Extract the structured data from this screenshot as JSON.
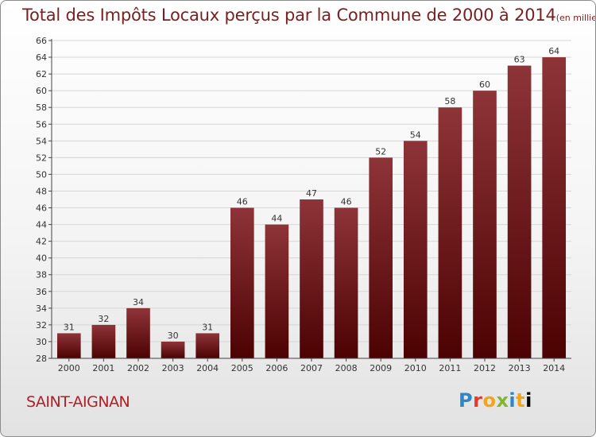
{
  "chart_data": {
    "type": "bar",
    "title": "Total des Impôts Locaux perçus par la Commune de 2000 à 2014",
    "unit": "(en milliers d'€)",
    "categories": [
      "2000",
      "2001",
      "2002",
      "2003",
      "2004",
      "2005",
      "2006",
      "2007",
      "2008",
      "2009",
      "2010",
      "2011",
      "2012",
      "2013",
      "2014"
    ],
    "values": [
      31,
      32,
      34,
      30,
      31,
      46,
      44,
      47,
      46,
      52,
      54,
      58,
      60,
      63,
      64
    ],
    "ylim": [
      28,
      66
    ],
    "yticks": [
      28,
      30,
      32,
      34,
      36,
      38,
      40,
      42,
      44,
      46,
      48,
      50,
      52,
      54,
      56,
      58,
      60,
      62,
      64,
      66
    ],
    "grid": true,
    "bar_color": "#8b2b30",
    "xlabel": "",
    "ylabel": ""
  },
  "commune": "SAINT-AIGNAN",
  "logo": {
    "text": "Proxiti",
    "letters": [
      "P",
      "r",
      "o",
      "x",
      "i",
      "t",
      "i"
    ]
  }
}
